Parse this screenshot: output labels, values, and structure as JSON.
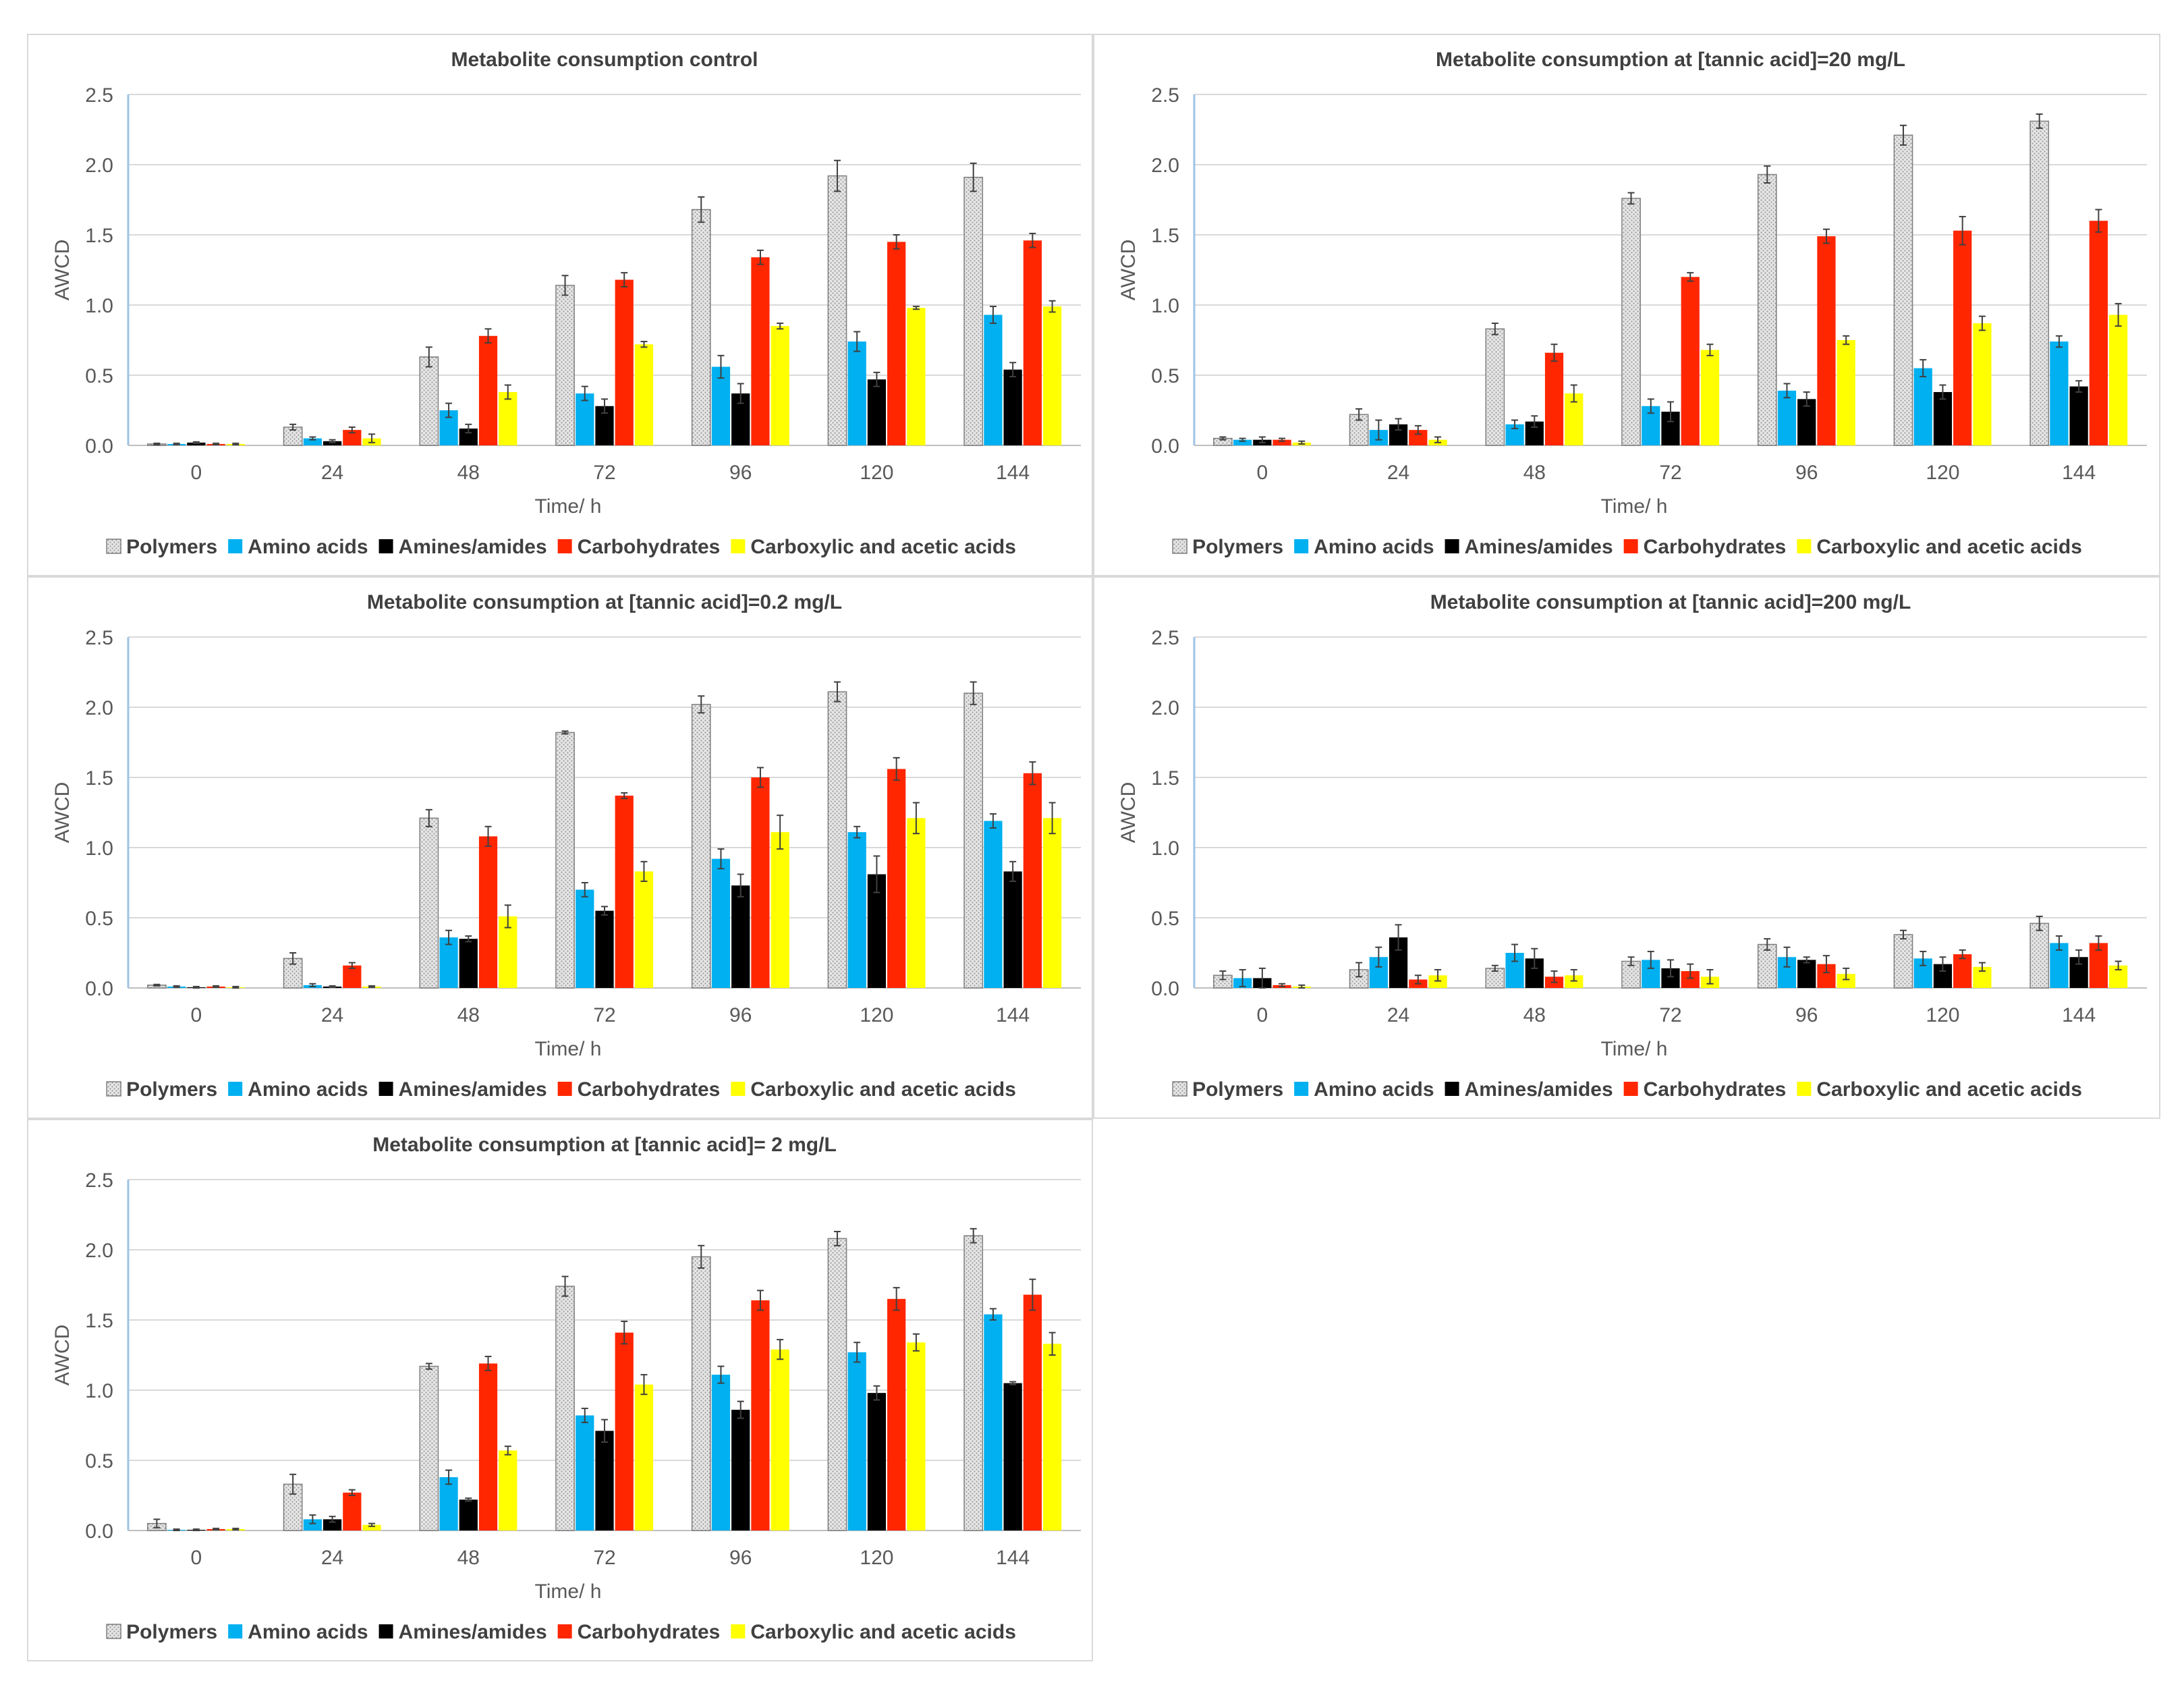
{
  "chart_data": [
    {
      "type": "bar",
      "title": "Metabolite consumption control",
      "xlabel": "Time/ h",
      "ylabel": "AWCD",
      "ylim": [
        0,
        2.5
      ],
      "yticks": [
        "0.0",
        "0.5",
        "1.0",
        "1.5",
        "2.0",
        "2.5"
      ],
      "categories": [
        "0",
        "24",
        "48",
        "72",
        "96",
        "120",
        "144"
      ],
      "legend_position": "bottom",
      "series": [
        {
          "name": "Polymers",
          "values": [
            0.01,
            0.13,
            0.63,
            1.14,
            1.68,
            1.92,
            1.91
          ],
          "errors": [
            0.005,
            0.02,
            0.07,
            0.07,
            0.09,
            0.11,
            0.1
          ]
        },
        {
          "name": "Amino acids",
          "values": [
            0.01,
            0.05,
            0.25,
            0.37,
            0.56,
            0.74,
            0.93
          ],
          "errors": [
            0.005,
            0.01,
            0.05,
            0.05,
            0.08,
            0.07,
            0.06
          ]
        },
        {
          "name": "Amines/amides",
          "values": [
            0.02,
            0.03,
            0.12,
            0.28,
            0.37,
            0.47,
            0.54
          ],
          "errors": [
            0.005,
            0.01,
            0.03,
            0.05,
            0.07,
            0.05,
            0.05
          ]
        },
        {
          "name": "Carbohydrates",
          "values": [
            0.01,
            0.11,
            0.78,
            1.18,
            1.34,
            1.45,
            1.46
          ],
          "errors": [
            0.005,
            0.02,
            0.05,
            0.05,
            0.05,
            0.05,
            0.05
          ]
        },
        {
          "name": "Carboxylic and acetic acids",
          "values": [
            0.01,
            0.05,
            0.38,
            0.72,
            0.85,
            0.98,
            0.99
          ],
          "errors": [
            0.005,
            0.03,
            0.05,
            0.02,
            0.02,
            0.01,
            0.04
          ]
        }
      ]
    },
    {
      "type": "bar",
      "title": "Metabolite consumption at [tannic acid]=20 mg/L",
      "xlabel": "Time/ h",
      "ylabel": "AWCD",
      "ylim": [
        0,
        2.5
      ],
      "yticks": [
        "0.0",
        "0.5",
        "1.0",
        "1.5",
        "2.0",
        "2.5"
      ],
      "categories": [
        "0",
        "24",
        "48",
        "72",
        "96",
        "120",
        "144"
      ],
      "legend_position": "bottom",
      "series": [
        {
          "name": "Polymers",
          "values": [
            0.05,
            0.22,
            0.83,
            1.76,
            1.93,
            2.21,
            2.31
          ],
          "errors": [
            0.01,
            0.04,
            0.04,
            0.04,
            0.06,
            0.07,
            0.05
          ]
        },
        {
          "name": "Amino acids",
          "values": [
            0.04,
            0.11,
            0.15,
            0.28,
            0.39,
            0.55,
            0.74
          ],
          "errors": [
            0.01,
            0.07,
            0.03,
            0.05,
            0.05,
            0.06,
            0.04
          ]
        },
        {
          "name": "Amines/amides",
          "values": [
            0.04,
            0.15,
            0.17,
            0.24,
            0.33,
            0.38,
            0.42
          ],
          "errors": [
            0.02,
            0.04,
            0.04,
            0.07,
            0.05,
            0.05,
            0.04
          ]
        },
        {
          "name": "Carbohydrates",
          "values": [
            0.04,
            0.11,
            0.66,
            1.2,
            1.49,
            1.53,
            1.6
          ],
          "errors": [
            0.01,
            0.03,
            0.06,
            0.03,
            0.05,
            0.1,
            0.08
          ]
        },
        {
          "name": "Carboxylic and acetic acids",
          "values": [
            0.02,
            0.04,
            0.37,
            0.68,
            0.75,
            0.87,
            0.93
          ],
          "errors": [
            0.01,
            0.02,
            0.06,
            0.04,
            0.03,
            0.05,
            0.08
          ]
        }
      ]
    },
    {
      "type": "bar",
      "title": "Metabolite consumption at [tannic acid]=0.2 mg/L",
      "xlabel": "Time/ h",
      "ylabel": "AWCD",
      "ylim": [
        0,
        2.5
      ],
      "yticks": [
        "0.0",
        "0.5",
        "1.0",
        "1.5",
        "2.0",
        "2.5"
      ],
      "categories": [
        "0",
        "24",
        "48",
        "72",
        "96",
        "120",
        "144"
      ],
      "legend_position": "bottom",
      "series": [
        {
          "name": "Polymers",
          "values": [
            0.02,
            0.21,
            1.21,
            1.82,
            2.02,
            2.11,
            2.1
          ],
          "errors": [
            0.005,
            0.04,
            0.06,
            0.01,
            0.06,
            0.07,
            0.08
          ]
        },
        {
          "name": "Amino acids",
          "values": [
            0.01,
            0.02,
            0.36,
            0.7,
            0.92,
            1.11,
            1.19
          ],
          "errors": [
            0.005,
            0.01,
            0.05,
            0.05,
            0.07,
            0.04,
            0.05
          ]
        },
        {
          "name": "Amines/amides",
          "values": [
            0.005,
            0.01,
            0.35,
            0.55,
            0.73,
            0.81,
            0.83
          ],
          "errors": [
            0.005,
            0.005,
            0.02,
            0.03,
            0.08,
            0.13,
            0.07
          ]
        },
        {
          "name": "Carbohydrates",
          "values": [
            0.01,
            0.16,
            1.08,
            1.37,
            1.5,
            1.56,
            1.53
          ],
          "errors": [
            0.005,
            0.02,
            0.07,
            0.02,
            0.07,
            0.08,
            0.08
          ]
        },
        {
          "name": "Carboxylic and acetic acids",
          "values": [
            0.005,
            0.01,
            0.51,
            0.83,
            1.11,
            1.21,
            1.21
          ],
          "errors": [
            0.005,
            0.005,
            0.08,
            0.07,
            0.12,
            0.11,
            0.11
          ]
        }
      ]
    },
    {
      "type": "bar",
      "title": "Metabolite consumption at [tannic acid]=200 mg/L",
      "xlabel": "Time/ h",
      "ylabel": "AWCD",
      "ylim": [
        0,
        2.5
      ],
      "yticks": [
        "0.0",
        "0.5",
        "1.0",
        "1.5",
        "2.0",
        "2.5"
      ],
      "categories": [
        "0",
        "24",
        "48",
        "72",
        "96",
        "120",
        "144"
      ],
      "legend_position": "bottom",
      "series": [
        {
          "name": "Polymers",
          "values": [
            0.09,
            0.13,
            0.14,
            0.19,
            0.31,
            0.38,
            0.46
          ],
          "errors": [
            0.03,
            0.05,
            0.02,
            0.03,
            0.04,
            0.03,
            0.05
          ]
        },
        {
          "name": "Amino acids",
          "values": [
            0.07,
            0.22,
            0.25,
            0.2,
            0.22,
            0.21,
            0.32
          ],
          "errors": [
            0.06,
            0.07,
            0.06,
            0.06,
            0.07,
            0.05,
            0.05
          ]
        },
        {
          "name": "Amines/amides",
          "values": [
            0.07,
            0.36,
            0.21,
            0.14,
            0.2,
            0.17,
            0.22
          ],
          "errors": [
            0.07,
            0.09,
            0.07,
            0.06,
            0.02,
            0.05,
            0.05
          ]
        },
        {
          "name": "Carbohydrates",
          "values": [
            0.02,
            0.06,
            0.08,
            0.12,
            0.17,
            0.24,
            0.32
          ],
          "errors": [
            0.01,
            0.03,
            0.04,
            0.05,
            0.06,
            0.03,
            0.05
          ]
        },
        {
          "name": "Carboxylic and acetic acids",
          "values": [
            0.01,
            0.09,
            0.09,
            0.08,
            0.1,
            0.15,
            0.16
          ],
          "errors": [
            0.01,
            0.04,
            0.04,
            0.05,
            0.04,
            0.03,
            0.03
          ]
        }
      ]
    },
    {
      "type": "bar",
      "title": "Metabolite consumption at [tannic acid]= 2 mg/L",
      "xlabel": "Time/ h",
      "ylabel": "AWCD",
      "ylim": [
        0,
        2.5
      ],
      "yticks": [
        "0.0",
        "0.5",
        "1.0",
        "1.5",
        "2.0",
        "2.5"
      ],
      "categories": [
        "0",
        "24",
        "48",
        "72",
        "96",
        "120",
        "144"
      ],
      "legend_position": "bottom",
      "series": [
        {
          "name": "Polymers",
          "values": [
            0.05,
            0.33,
            1.17,
            1.74,
            1.95,
            2.08,
            2.1
          ],
          "errors": [
            0.03,
            0.07,
            0.02,
            0.07,
            0.08,
            0.05,
            0.05
          ]
        },
        {
          "name": "Amino acids",
          "values": [
            0.005,
            0.08,
            0.38,
            0.82,
            1.11,
            1.27,
            1.54
          ],
          "errors": [
            0.005,
            0.03,
            0.05,
            0.05,
            0.06,
            0.07,
            0.04
          ]
        },
        {
          "name": "Amines/amides",
          "values": [
            0.005,
            0.08,
            0.22,
            0.71,
            0.86,
            0.98,
            1.05
          ],
          "errors": [
            0.005,
            0.02,
            0.01,
            0.08,
            0.06,
            0.05,
            0.01
          ]
        },
        {
          "name": "Carbohydrates",
          "values": [
            0.01,
            0.27,
            1.19,
            1.41,
            1.64,
            1.65,
            1.68
          ],
          "errors": [
            0.005,
            0.02,
            0.05,
            0.08,
            0.07,
            0.08,
            0.11
          ]
        },
        {
          "name": "Carboxylic and acetic acids",
          "values": [
            0.01,
            0.04,
            0.57,
            1.04,
            1.29,
            1.34,
            1.33
          ],
          "errors": [
            0.005,
            0.01,
            0.03,
            0.07,
            0.07,
            0.06,
            0.08
          ]
        }
      ]
    }
  ],
  "series_colors": [
    "#d9d9d9",
    "#00b0f0",
    "#000000",
    "#ff2600",
    "#ffff00"
  ],
  "series_icons": [
    "dotted-pattern-swatch",
    "solid-swatch",
    "solid-swatch",
    "solid-swatch",
    "solid-swatch"
  ]
}
